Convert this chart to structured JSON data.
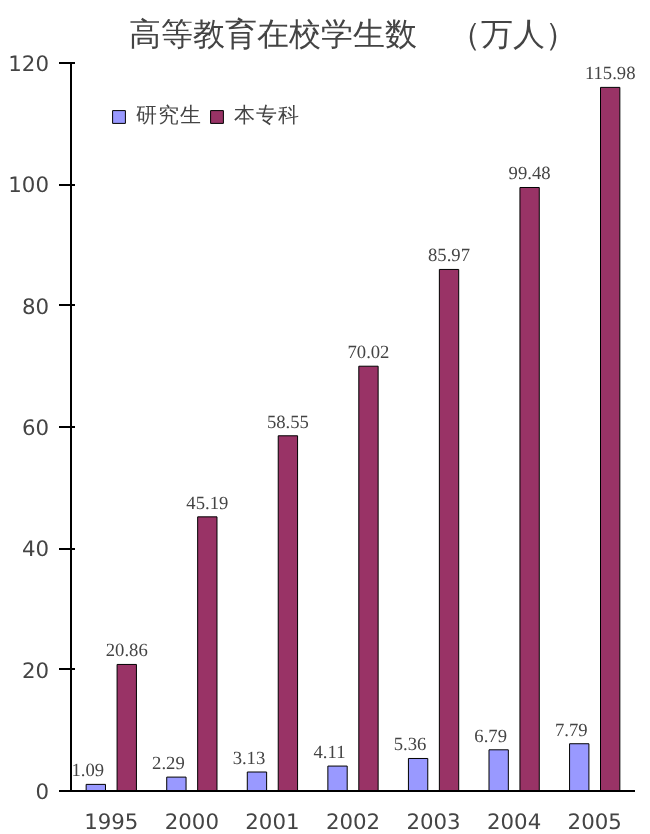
{
  "chart_data": {
    "type": "bar",
    "title": "高等教育在校学生数　（万人）",
    "categories": [
      "1995",
      "2000",
      "2001",
      "2002",
      "2003",
      "2004",
      "2005"
    ],
    "series": [
      {
        "name": "研究生",
        "color": "#9999ff",
        "values": [
          1.09,
          2.29,
          3.13,
          4.11,
          5.36,
          6.79,
          7.79
        ]
      },
      {
        "name": "本专科",
        "color": "#993366",
        "values": [
          20.86,
          45.19,
          58.55,
          70.02,
          85.97,
          99.48,
          115.98
        ]
      }
    ],
    "ylim": [
      0,
      120
    ],
    "yticks": [
      0,
      20,
      40,
      60,
      80,
      100,
      120
    ],
    "grid": false,
    "legend": "top left",
    "data_labels": true
  }
}
